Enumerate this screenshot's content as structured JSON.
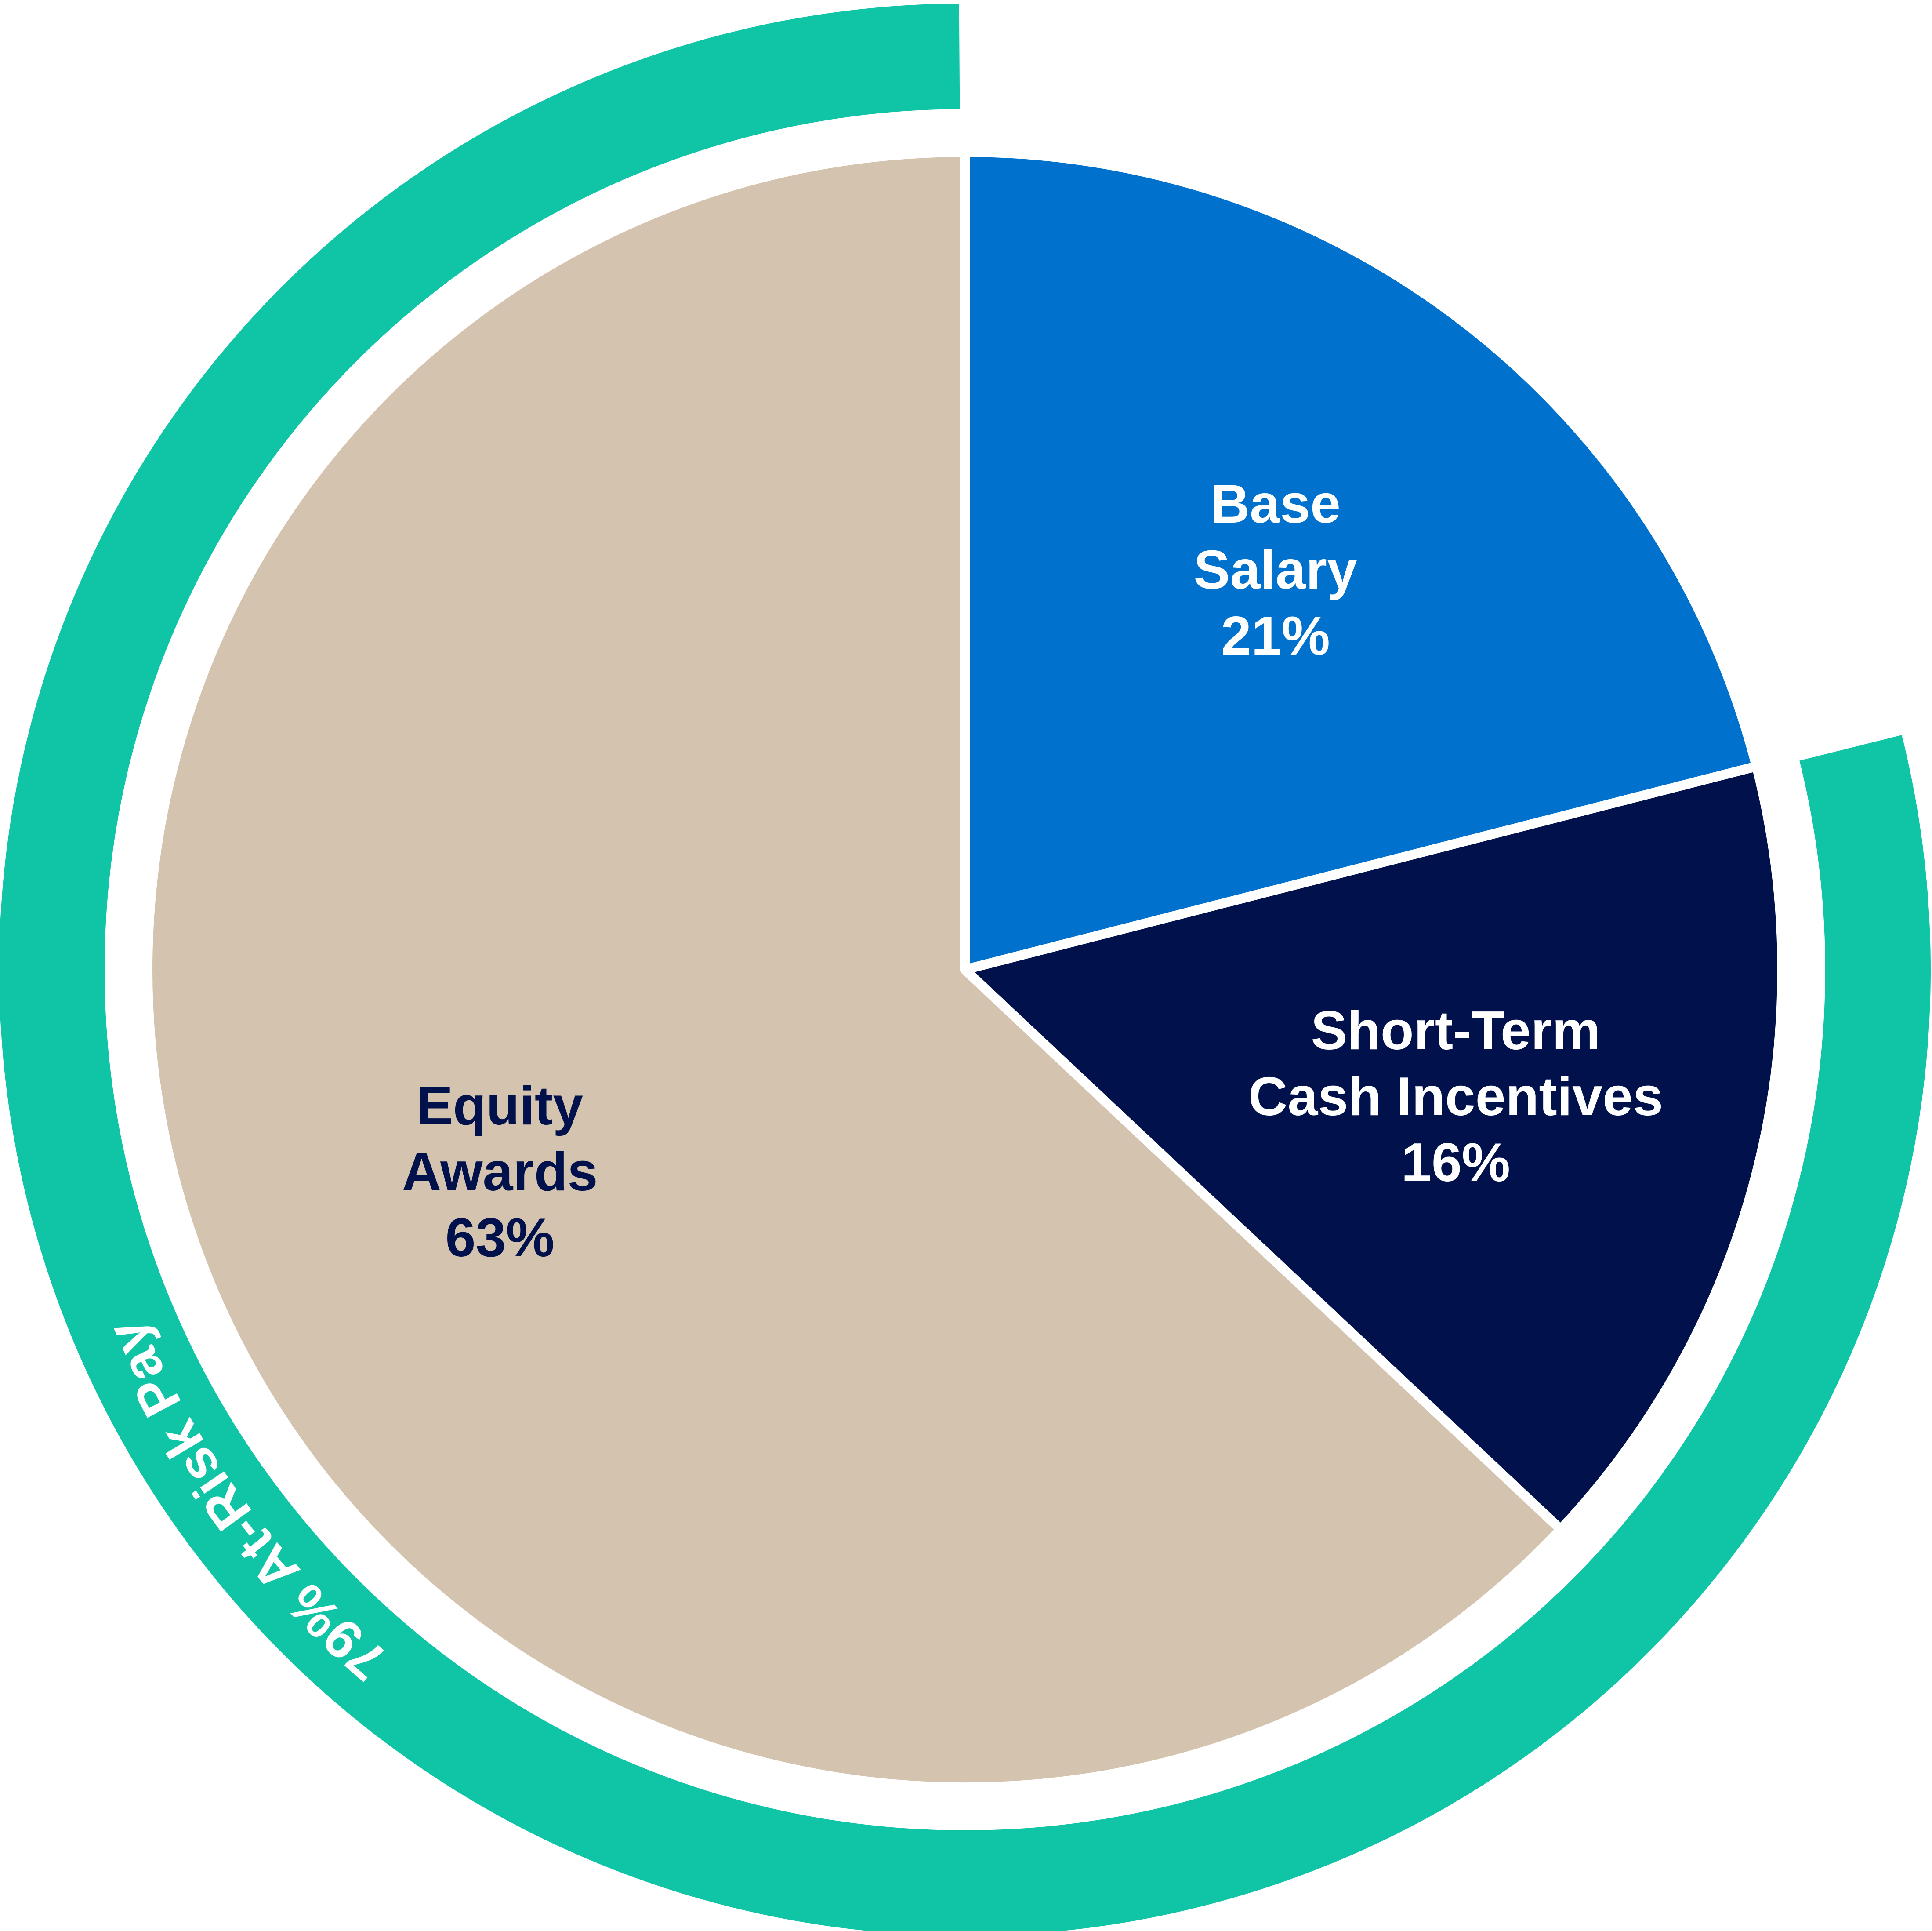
{
  "chart_data": {
    "type": "pie",
    "slices": [
      {
        "id": "base-salary",
        "lines": [
          "Base",
          "Salary",
          "21%"
        ],
        "value": 21,
        "color": "#0072CE",
        "text_color": "#FFFFFF"
      },
      {
        "id": "short-term-cash",
        "lines": [
          "Short-Term",
          "Cash Incentives",
          "16%"
        ],
        "value": 16,
        "color": "#00114B",
        "text_color": "#FFFFFF"
      },
      {
        "id": "equity-awards",
        "lines": [
          "Equity",
          "Awards",
          "63%"
        ],
        "value": 63,
        "color": "#D4C4AF",
        "text_color": "#00114B"
      }
    ],
    "ring": {
      "label": "79% At-Risk Pay",
      "value": 79,
      "color": "#10C4A6"
    },
    "start_angle_deg": 0,
    "direction": "clockwise"
  }
}
